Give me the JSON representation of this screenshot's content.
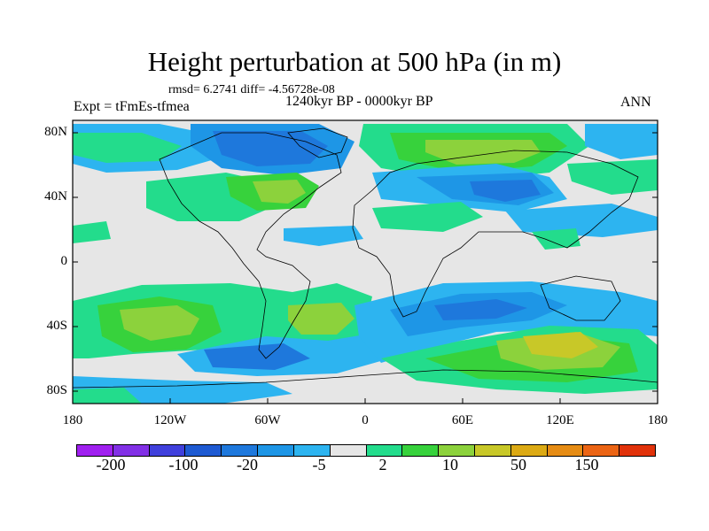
{
  "title": "Height perturbation at 500 hPa (in m)",
  "stats": "rmsd= 6.2741 diff= -4.56728e-08",
  "period": "1240kyr BP - 0000kyr BP",
  "experiment": "Expt = tFmEs-tfmea",
  "season": "ANN",
  "y_axis": [
    "80N",
    "40N",
    "0",
    "40S",
    "80S"
  ],
  "x_axis": [
    "180",
    "120W",
    "60W",
    "0",
    "60E",
    "120E",
    "180"
  ],
  "colorbar": {
    "colors": [
      "#a020f0",
      "#8230e6",
      "#4040dc",
      "#1e5ad2",
      "#1e78dc",
      "#1e96e6",
      "#2db4f0",
      "#e6e6e6",
      "#23dc8c",
      "#37d23c",
      "#8cd23c",
      "#c8c828",
      "#dcaa14",
      "#e68c14",
      "#eb6414",
      "#e1320a"
    ],
    "labels": [
      "-200",
      "-100",
      "-20",
      "-5",
      "2",
      "10",
      "50",
      "150"
    ]
  },
  "map": {
    "neutral_color": "#e6e6e6",
    "ocean_outline_color": "#000000"
  }
}
